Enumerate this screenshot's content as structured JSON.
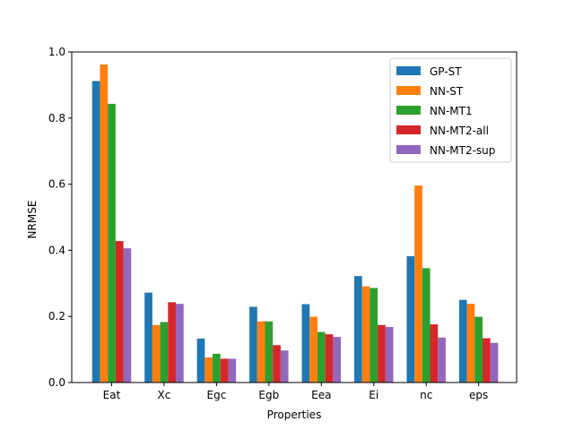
{
  "chart_data": {
    "type": "bar",
    "title": "",
    "xlabel": "Properties",
    "ylabel": "NRMSE",
    "ylim": [
      0,
      1.0
    ],
    "yticks": [
      "0.0",
      "0.2",
      "0.4",
      "0.6",
      "0.8",
      "1.0"
    ],
    "categories": [
      "Eat",
      "Xc",
      "Egc",
      "Egb",
      "Eea",
      "Ei",
      "nc",
      "eps"
    ],
    "legend_position": "top-right",
    "grid": false,
    "series": [
      {
        "name": "GP-ST",
        "color": "#1f77b4",
        "values": [
          0.912,
          0.272,
          0.133,
          0.229,
          0.237,
          0.322,
          0.382,
          0.25
        ]
      },
      {
        "name": "NN-ST",
        "color": "#ff7f0e",
        "values": [
          0.962,
          0.174,
          0.076,
          0.185,
          0.199,
          0.291,
          0.596,
          0.238
        ]
      },
      {
        "name": "NN-MT1",
        "color": "#2ca02c",
        "values": [
          0.843,
          0.183,
          0.087,
          0.185,
          0.153,
          0.286,
          0.346,
          0.199
        ]
      },
      {
        "name": "NN-MT2-all",
        "color": "#d62728",
        "values": [
          0.428,
          0.243,
          0.072,
          0.113,
          0.146,
          0.174,
          0.176,
          0.134
        ]
      },
      {
        "name": "NN-MT2-sup",
        "color": "#9467bd",
        "values": [
          0.406,
          0.238,
          0.072,
          0.097,
          0.138,
          0.168,
          0.136,
          0.12
        ]
      }
    ]
  }
}
